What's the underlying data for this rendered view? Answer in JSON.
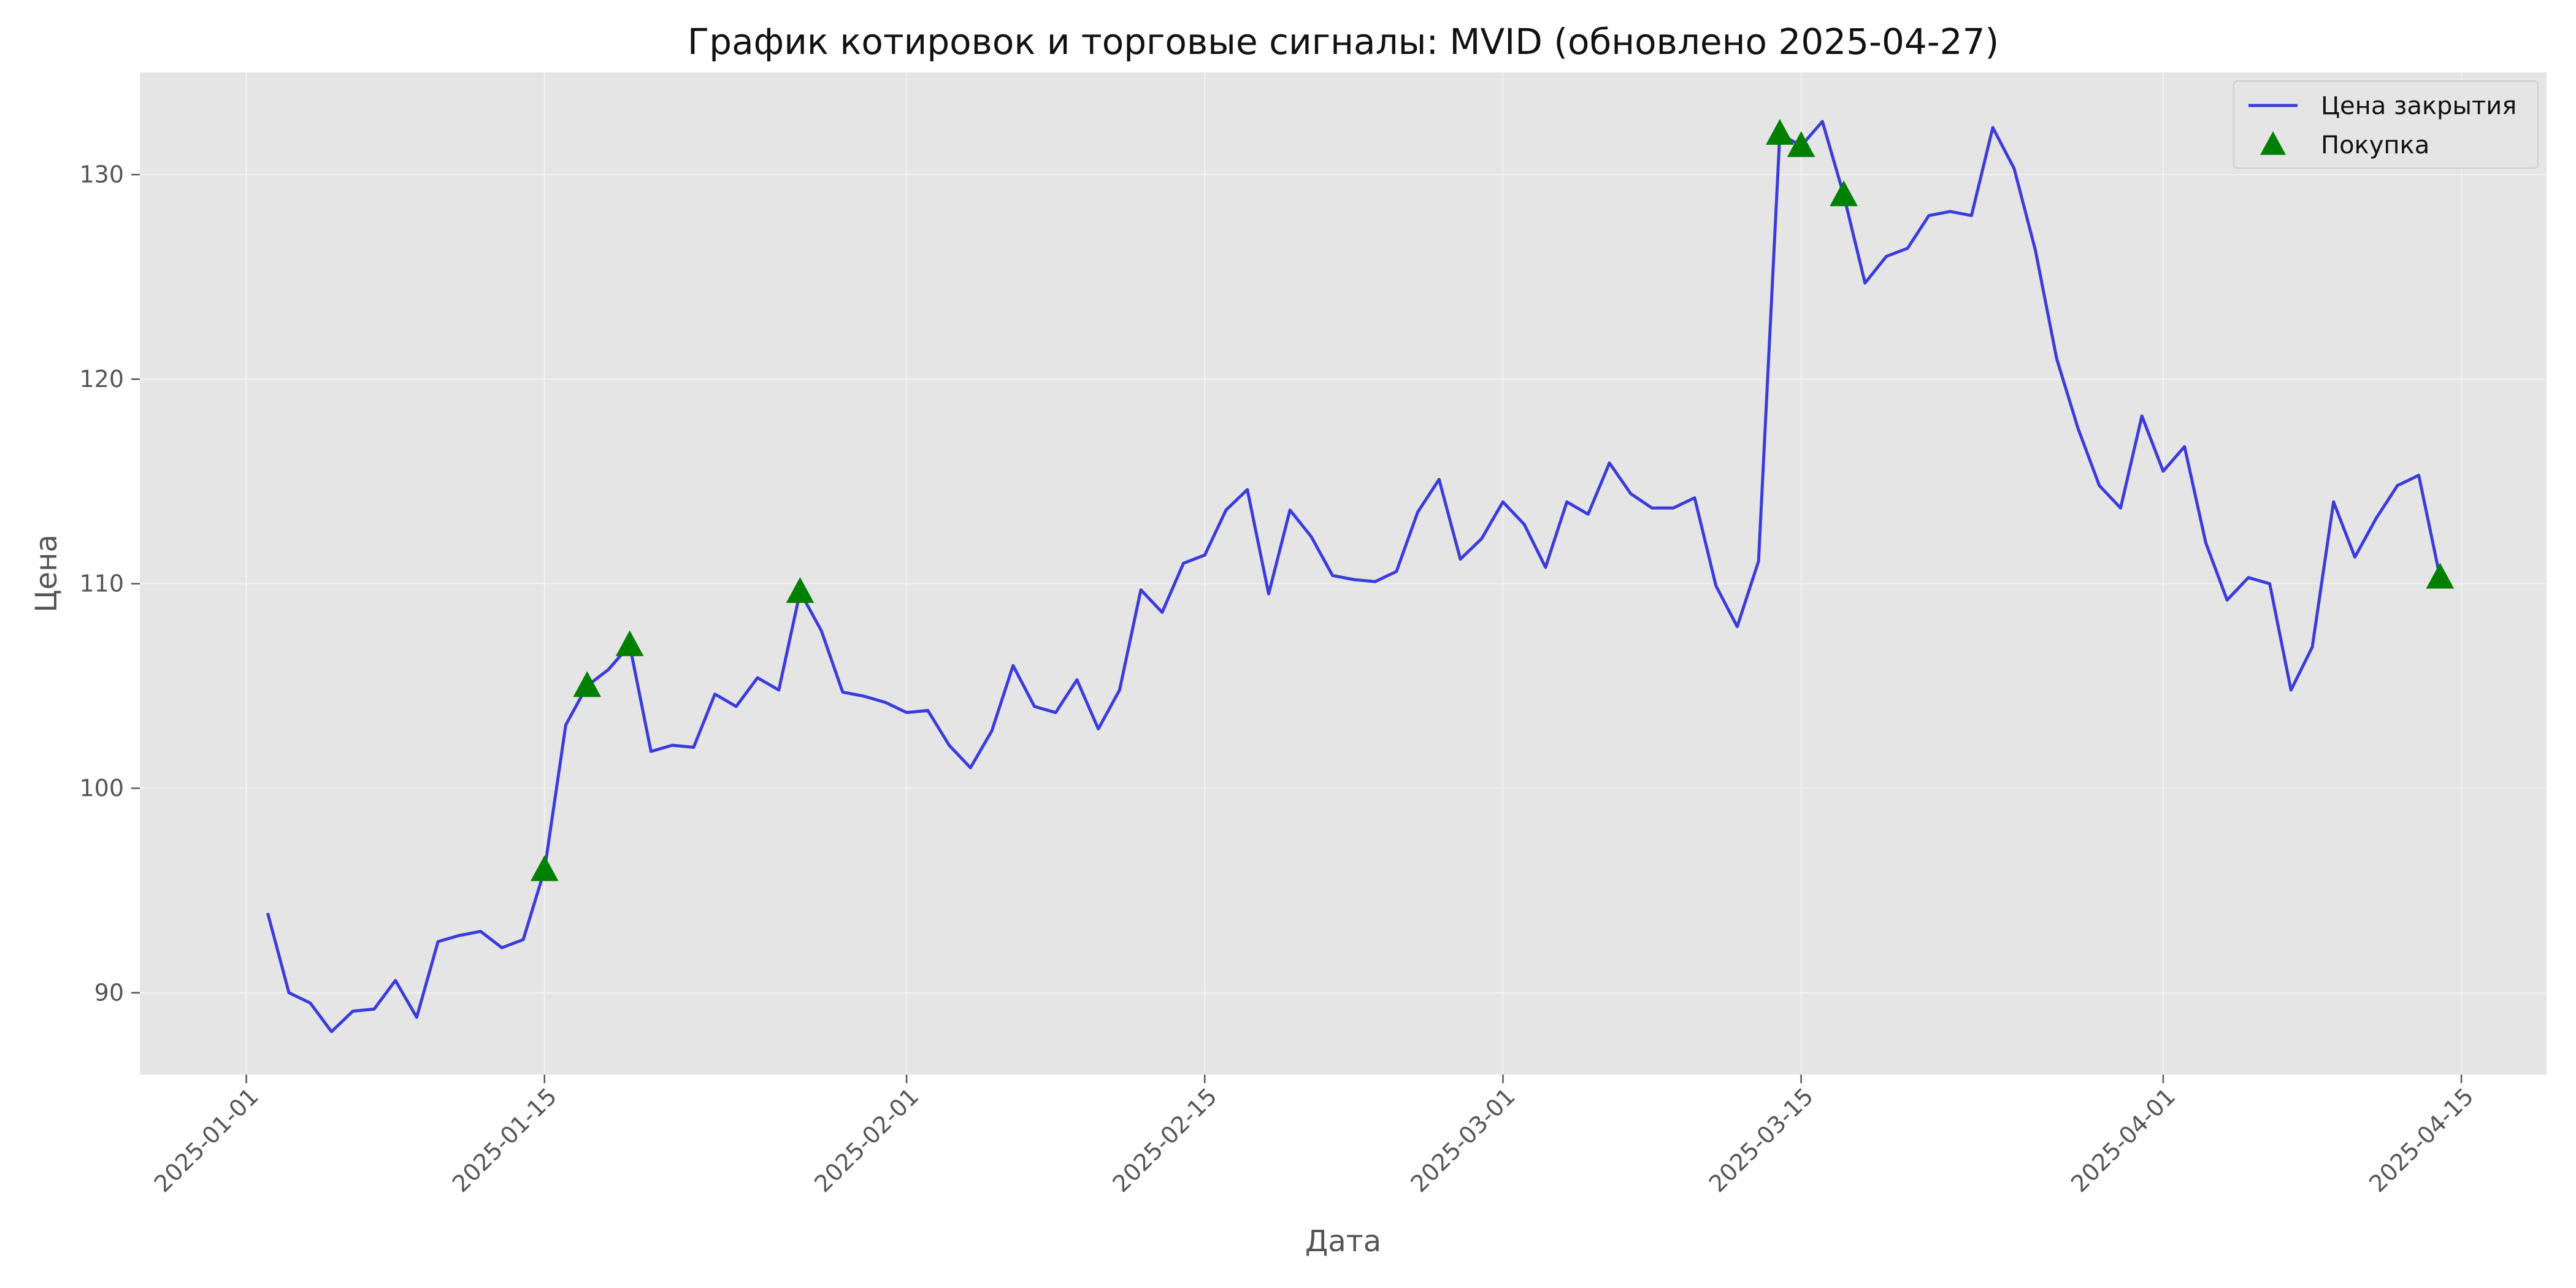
{
  "chart_data": {
    "type": "line",
    "title": "График котировок и торговые сигналы: MVID (обновлено 2025-04-27)",
    "xlabel": "Дата",
    "ylabel": "Цена",
    "xlim": [
      "2024-12-27",
      "2025-04-19"
    ],
    "ylim": [
      86,
      135
    ],
    "grid": true,
    "legend_position": "top-right",
    "x_ticks": [
      "2025-01-01",
      "2025-01-15",
      "2025-02-01",
      "2025-02-15",
      "2025-03-01",
      "2025-03-15",
      "2025-04-01",
      "2025-04-15"
    ],
    "y_ticks": [
      90,
      100,
      110,
      120,
      130
    ],
    "colors": {
      "line": "#3b3bdc",
      "marker": "#008000",
      "plot_bg": "#e5e5e5",
      "grid": "#f2f2f2"
    },
    "series": [
      {
        "name": "Цена закрытия",
        "kind": "line",
        "points": [
          [
            "2025-01-02",
            93.9
          ],
          [
            "2025-01-03",
            90.0
          ],
          [
            "2025-01-04",
            89.5
          ],
          [
            "2025-01-05",
            88.1
          ],
          [
            "2025-01-06",
            89.1
          ],
          [
            "2025-01-07",
            89.2
          ],
          [
            "2025-01-08",
            90.6
          ],
          [
            "2025-01-09",
            88.8
          ],
          [
            "2025-01-10",
            92.5
          ],
          [
            "2025-01-11",
            92.8
          ],
          [
            "2025-01-12",
            93.0
          ],
          [
            "2025-01-13",
            92.2
          ],
          [
            "2025-01-14",
            92.6
          ],
          [
            "2025-01-15",
            96.0
          ],
          [
            "2025-01-16",
            103.1
          ],
          [
            "2025-01-17",
            105.0
          ],
          [
            "2025-01-18",
            105.8
          ],
          [
            "2025-01-19",
            107.0
          ],
          [
            "2025-01-20",
            101.8
          ],
          [
            "2025-01-21",
            102.1
          ],
          [
            "2025-01-22",
            102.0
          ],
          [
            "2025-01-23",
            104.6
          ],
          [
            "2025-01-24",
            104.0
          ],
          [
            "2025-01-25",
            105.4
          ],
          [
            "2025-01-26",
            104.8
          ],
          [
            "2025-01-27",
            109.6
          ],
          [
            "2025-01-28",
            107.7
          ],
          [
            "2025-01-29",
            104.7
          ],
          [
            "2025-01-30",
            104.5
          ],
          [
            "2025-01-31",
            104.2
          ],
          [
            "2025-02-01",
            103.7
          ],
          [
            "2025-02-02",
            103.8
          ],
          [
            "2025-02-03",
            102.1
          ],
          [
            "2025-02-04",
            101.0
          ],
          [
            "2025-02-05",
            102.8
          ],
          [
            "2025-02-06",
            106.0
          ],
          [
            "2025-02-07",
            104.0
          ],
          [
            "2025-02-08",
            103.7
          ],
          [
            "2025-02-09",
            105.3
          ],
          [
            "2025-02-10",
            102.9
          ],
          [
            "2025-02-11",
            104.8
          ],
          [
            "2025-02-12",
            109.7
          ],
          [
            "2025-02-13",
            108.6
          ],
          [
            "2025-02-14",
            111.0
          ],
          [
            "2025-02-15",
            111.4
          ],
          [
            "2025-02-16",
            113.6
          ],
          [
            "2025-02-17",
            114.6
          ],
          [
            "2025-02-18",
            109.5
          ],
          [
            "2025-02-19",
            113.6
          ],
          [
            "2025-02-20",
            112.3
          ],
          [
            "2025-02-21",
            110.4
          ],
          [
            "2025-02-22",
            110.2
          ],
          [
            "2025-02-23",
            110.1
          ],
          [
            "2025-02-24",
            110.6
          ],
          [
            "2025-02-25",
            113.5
          ],
          [
            "2025-02-26",
            115.1
          ],
          [
            "2025-02-27",
            111.2
          ],
          [
            "2025-02-28",
            112.2
          ],
          [
            "2025-03-01",
            114.0
          ],
          [
            "2025-03-02",
            112.9
          ],
          [
            "2025-03-03",
            110.8
          ],
          [
            "2025-03-04",
            114.0
          ],
          [
            "2025-03-05",
            113.4
          ],
          [
            "2025-03-06",
            115.9
          ],
          [
            "2025-03-07",
            114.4
          ],
          [
            "2025-03-08",
            113.7
          ],
          [
            "2025-03-09",
            113.7
          ],
          [
            "2025-03-10",
            114.2
          ],
          [
            "2025-03-11",
            109.9
          ],
          [
            "2025-03-12",
            107.9
          ],
          [
            "2025-03-13",
            111.1
          ],
          [
            "2025-03-14",
            132.0
          ],
          [
            "2025-03-15",
            131.4
          ],
          [
            "2025-03-16",
            132.6
          ],
          [
            "2025-03-17",
            129.0
          ],
          [
            "2025-03-18",
            124.7
          ],
          [
            "2025-03-19",
            126.0
          ],
          [
            "2025-03-20",
            126.4
          ],
          [
            "2025-03-21",
            128.0
          ],
          [
            "2025-03-22",
            128.2
          ],
          [
            "2025-03-23",
            128.0
          ],
          [
            "2025-03-24",
            132.3
          ],
          [
            "2025-03-25",
            130.3
          ],
          [
            "2025-03-26",
            126.3
          ],
          [
            "2025-03-27",
            121.0
          ],
          [
            "2025-03-28",
            117.6
          ],
          [
            "2025-03-29",
            114.8
          ],
          [
            "2025-03-30",
            113.7
          ],
          [
            "2025-03-31",
            118.2
          ],
          [
            "2025-04-01",
            115.5
          ],
          [
            "2025-04-02",
            116.7
          ],
          [
            "2025-04-03",
            112.0
          ],
          [
            "2025-04-04",
            109.2
          ],
          [
            "2025-04-05",
            110.3
          ],
          [
            "2025-04-06",
            110.0
          ],
          [
            "2025-04-07",
            104.8
          ],
          [
            "2025-04-08",
            106.9
          ],
          [
            "2025-04-09",
            114.0
          ],
          [
            "2025-04-10",
            111.3
          ],
          [
            "2025-04-11",
            113.2
          ],
          [
            "2025-04-12",
            114.8
          ],
          [
            "2025-04-13",
            115.3
          ],
          [
            "2025-04-14",
            110.3
          ]
        ]
      },
      {
        "name": "Покупка",
        "kind": "scatter",
        "marker": "triangle-up",
        "points": [
          [
            "2025-01-15",
            96.0
          ],
          [
            "2025-01-17",
            105.0
          ],
          [
            "2025-01-19",
            107.0
          ],
          [
            "2025-01-27",
            109.6
          ],
          [
            "2025-03-14",
            132.0
          ],
          [
            "2025-03-15",
            131.4
          ],
          [
            "2025-03-17",
            129.0
          ],
          [
            "2025-04-14",
            110.3
          ]
        ]
      }
    ]
  }
}
